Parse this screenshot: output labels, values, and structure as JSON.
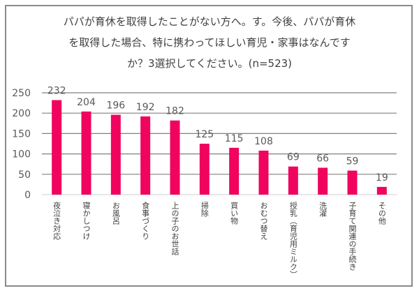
{
  "chart_data": {
    "type": "bar",
    "title_lines": [
      "パパが育休を取得したことがない方へ。す。今後、パパが育休",
      "を取得した場合、特に携わってほしい育児・家事はなんです",
      "か？3選択してください。(n=523)"
    ],
    "categories": [
      "夜泣き対応",
      "寝かしつけ",
      "お風呂",
      "食事づくり",
      "上の子のお世話",
      "掃除",
      "買い物",
      "おむつ替え",
      "授乳（育児用ミルク）",
      "洗濯",
      "子育て関連の手続き",
      "その他"
    ],
    "values": [
      232,
      204,
      196,
      192,
      182,
      125,
      115,
      108,
      69,
      66,
      59,
      19
    ],
    "yticks": [
      0,
      50,
      100,
      150,
      200,
      250
    ],
    "ylim": [
      0,
      250
    ],
    "grid": true,
    "bar_color": "#f0045e"
  }
}
